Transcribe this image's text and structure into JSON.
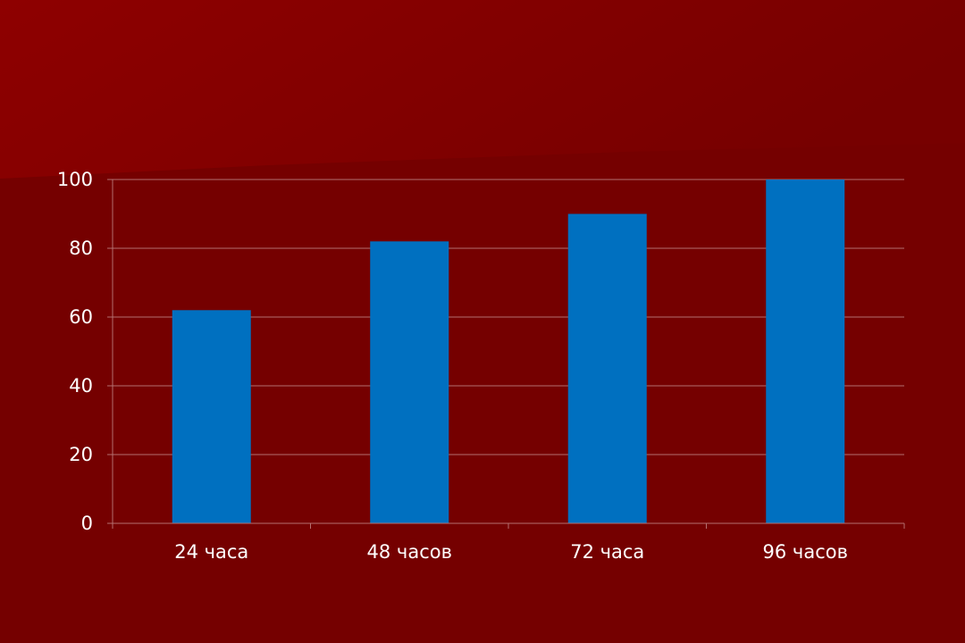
{
  "colors": {
    "background": "#750000",
    "header_band_left": "#8e0000",
    "header_band_right": "#770000",
    "bar": "#0070c0",
    "gridline": "#b47070",
    "axis": "#b47070",
    "text": "#ffffff"
  },
  "chart_data": {
    "type": "bar",
    "categories": [
      "24 часа",
      "48 часов",
      "72 часа",
      "96 часов"
    ],
    "values": [
      62,
      82,
      90,
      100
    ],
    "ylim": [
      0,
      100
    ],
    "yticks": [
      0,
      20,
      40,
      60,
      80,
      100
    ],
    "title": "",
    "xlabel": "",
    "ylabel": "",
    "grid": true,
    "legend": "none"
  }
}
